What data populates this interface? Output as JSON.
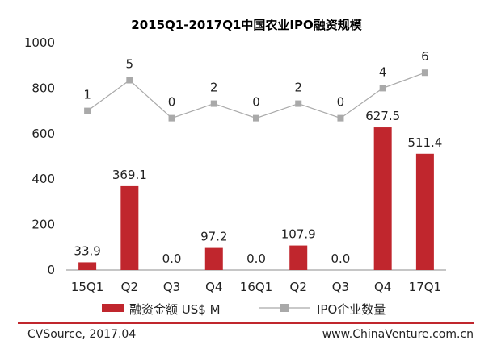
{
  "chart_data": {
    "type": "bar",
    "title": "2015Q1-2017Q1中国农业IPO融资规模",
    "categories": [
      "15Q1",
      "Q2",
      "Q3",
      "Q4",
      "16Q1",
      "Q2",
      "Q3",
      "Q4",
      "17Q1"
    ],
    "ylim": [
      0,
      1000
    ],
    "yticks": [
      0,
      200,
      400,
      600,
      800,
      1000
    ],
    "grid": false,
    "legend_position": "bottom",
    "series": [
      {
        "name": "融资金额 US$ M",
        "type": "bar",
        "color": "#c0262d",
        "values": [
          33.9,
          369.1,
          0.0,
          97.2,
          0.0,
          107.9,
          0.0,
          627.5,
          511.4
        ],
        "labels": [
          "33.9",
          "369.1",
          "0.0",
          "97.2",
          "0.0",
          "107.9",
          "0.0",
          "627.5",
          "511.4"
        ]
      },
      {
        "name": "IPO企业数量",
        "type": "line",
        "color": "#a9a9a9",
        "values": [
          1,
          5,
          0,
          2,
          0,
          2,
          0,
          4,
          6
        ],
        "plotted_on_primary_axis": [
          700,
          835,
          668,
          732,
          668,
          732,
          668,
          800,
          868
        ],
        "labels": [
          "1",
          "5",
          "0",
          "2",
          "0",
          "2",
          "0",
          "4",
          "6"
        ]
      }
    ]
  },
  "footer": {
    "source": "CVSource, 2017.04",
    "website": "www.ChinaVenture.com.cn",
    "accent_color": "#c0262d"
  }
}
